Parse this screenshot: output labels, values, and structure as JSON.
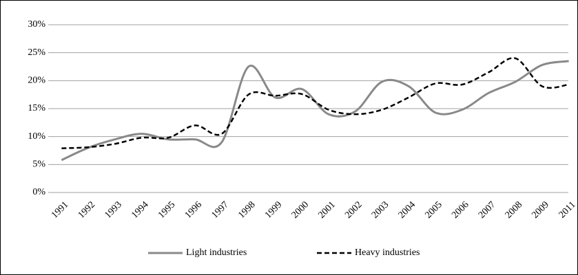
{
  "chart_data": {
    "type": "line",
    "categories": [
      "1991",
      "1992",
      "1993",
      "1994",
      "1995",
      "1996",
      "1997",
      "1998",
      "1999",
      "2000",
      "2001",
      "2002",
      "2003",
      "2004",
      "2005",
      "2006",
      "2007",
      "2008",
      "2009",
      "2011"
    ],
    "series": [
      {
        "name": "Light industries",
        "color": "#898989",
        "dash": false,
        "values": [
          5.8,
          8,
          9.5,
          10.5,
          9.5,
          9.5,
          9,
          22.5,
          17,
          18.5,
          14,
          14.5,
          19.8,
          19,
          14.3,
          14.8,
          17.8,
          19.8,
          22.8,
          23.5
        ]
      },
      {
        "name": "Heavy industries",
        "color": "#000000",
        "dash": true,
        "values": [
          7.9,
          8.1,
          8.7,
          9.8,
          9.8,
          12,
          10.5,
          17.5,
          17.3,
          17.6,
          14.8,
          14,
          14.8,
          17,
          19.5,
          19.3,
          21.5,
          24,
          19,
          19.3
        ]
      }
    ],
    "ylim": [
      0,
      30
    ],
    "yticks": [
      {
        "value": 0,
        "label": "0%"
      },
      {
        "value": 5,
        "label": "5%"
      },
      {
        "value": 10,
        "label": "10%"
      },
      {
        "value": 15,
        "label": "15%"
      },
      {
        "value": 20,
        "label": "20%"
      },
      {
        "value": 25,
        "label": "25%"
      },
      {
        "value": 30,
        "label": "30%"
      }
    ],
    "grid": true,
    "legend": "bottom"
  }
}
